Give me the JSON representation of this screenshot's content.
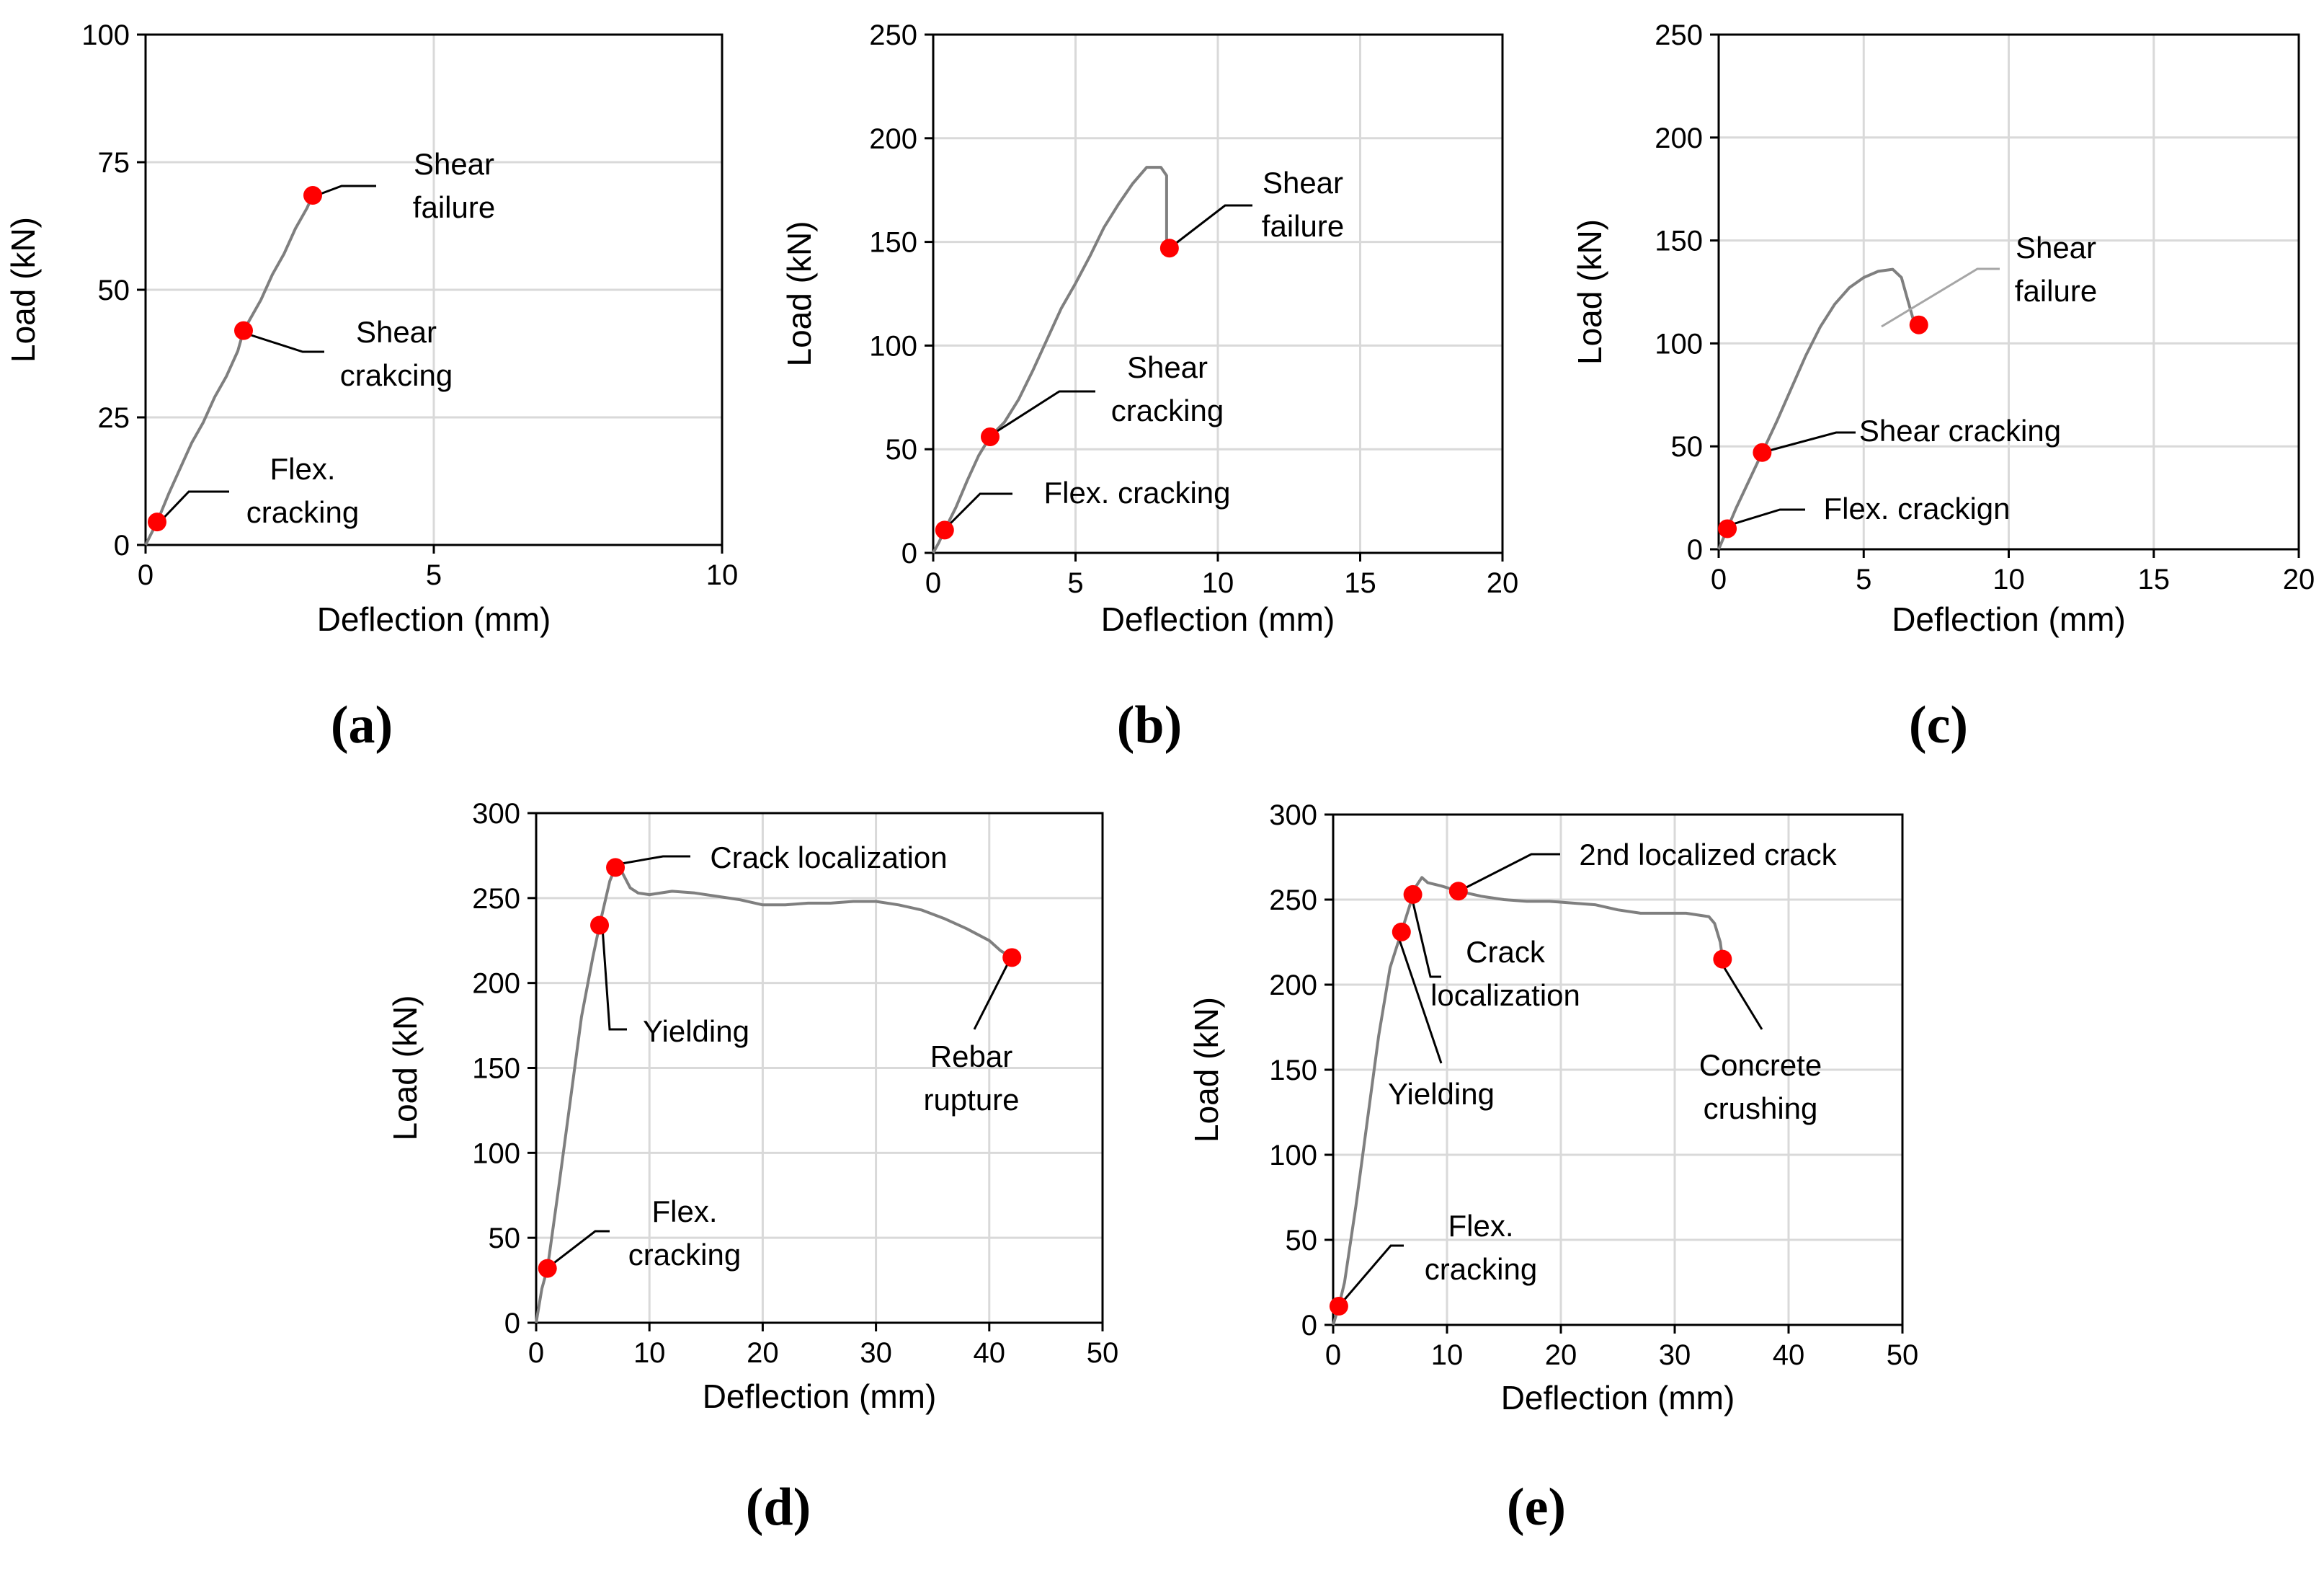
{
  "chart_data": [
    {
      "id": "a",
      "type": "line",
      "panel_label": "(a)",
      "xlabel": "Deflection (mm)",
      "ylabel": "Load (kN)",
      "xlim": [
        0,
        10
      ],
      "ylim": [
        0,
        100
      ],
      "xticks": [
        0,
        5,
        10
      ],
      "yticks": [
        0,
        25,
        50,
        75,
        100
      ],
      "curve": [
        [
          0,
          0
        ],
        [
          0.2,
          4.5
        ],
        [
          0.4,
          10
        ],
        [
          0.6,
          15
        ],
        [
          0.8,
          20
        ],
        [
          1.0,
          24
        ],
        [
          1.2,
          29
        ],
        [
          1.4,
          33
        ],
        [
          1.6,
          38
        ],
        [
          1.7,
          42
        ],
        [
          1.8,
          44
        ],
        [
          2.0,
          48
        ],
        [
          2.2,
          53
        ],
        [
          2.4,
          57
        ],
        [
          2.6,
          62
        ],
        [
          2.8,
          66
        ],
        [
          2.9,
          68.5
        ]
      ],
      "points": [
        {
          "x": 0.2,
          "y": 4.5,
          "label": [
            "Flex.",
            "cracking"
          ]
        },
        {
          "x": 1.7,
          "y": 42,
          "label": [
            "Shear",
            "crakcing"
          ]
        },
        {
          "x": 2.9,
          "y": 68.5,
          "label": [
            "Shear",
            "failure"
          ]
        }
      ]
    },
    {
      "id": "b",
      "type": "line",
      "panel_label": "(b)",
      "xlabel": "Deflection (mm)",
      "ylabel": "Load (kN)",
      "xlim": [
        0,
        20
      ],
      "ylim": [
        0,
        250
      ],
      "xticks": [
        0,
        5,
        10,
        15,
        20
      ],
      "yticks": [
        0,
        50,
        100,
        150,
        200,
        250
      ],
      "curve": [
        [
          0,
          0
        ],
        [
          0.2,
          5
        ],
        [
          0.4,
          11
        ],
        [
          0.8,
          22
        ],
        [
          1.2,
          35
        ],
        [
          1.6,
          47
        ],
        [
          2.0,
          56
        ],
        [
          2.5,
          63
        ],
        [
          3.0,
          74
        ],
        [
          3.5,
          88
        ],
        [
          4.0,
          103
        ],
        [
          4.5,
          118
        ],
        [
          5.0,
          130
        ],
        [
          5.5,
          143
        ],
        [
          6.0,
          157
        ],
        [
          6.5,
          168
        ],
        [
          7.0,
          178
        ],
        [
          7.5,
          186
        ],
        [
          8.0,
          186
        ],
        [
          8.2,
          182
        ],
        [
          8.2,
          150
        ],
        [
          8.3,
          147
        ]
      ],
      "points": [
        {
          "x": 0.4,
          "y": 11,
          "label": [
            "Flex. cracking"
          ]
        },
        {
          "x": 2.0,
          "y": 56,
          "label": [
            "Shear",
            "cracking"
          ]
        },
        {
          "x": 8.3,
          "y": 147,
          "label": [
            "Shear",
            "failure"
          ]
        }
      ]
    },
    {
      "id": "c",
      "type": "line",
      "panel_label": "(c)",
      "xlabel": "Deflection (mm)",
      "ylabel": "Load (kN)",
      "xlim": [
        0,
        20
      ],
      "ylim": [
        0,
        250
      ],
      "xticks": [
        0,
        5,
        10,
        15,
        20
      ],
      "yticks": [
        0,
        50,
        100,
        150,
        200,
        250
      ],
      "curve": [
        [
          0,
          0
        ],
        [
          0.3,
          10
        ],
        [
          0.6,
          20
        ],
        [
          1.0,
          32
        ],
        [
          1.5,
          47
        ],
        [
          2.0,
          62
        ],
        [
          2.5,
          78
        ],
        [
          3.0,
          94
        ],
        [
          3.5,
          108
        ],
        [
          4.0,
          119
        ],
        [
          4.5,
          127
        ],
        [
          5.0,
          132
        ],
        [
          5.5,
          135
        ],
        [
          6.0,
          136
        ],
        [
          6.3,
          132
        ],
        [
          6.5,
          122
        ],
        [
          6.7,
          112
        ],
        [
          6.9,
          109
        ]
      ],
      "points": [
        {
          "x": 0.3,
          "y": 10,
          "label": [
            "Flex. crackign"
          ]
        },
        {
          "x": 1.5,
          "y": 47,
          "label": [
            "Shear cracking"
          ]
        },
        {
          "x": 6.9,
          "y": 109,
          "label": [
            "Shear",
            "failure"
          ]
        }
      ]
    },
    {
      "id": "d",
      "type": "line",
      "panel_label": "(d)",
      "xlabel": "Deflection (mm)",
      "ylabel": "Load (kN)",
      "xlim": [
        0,
        50
      ],
      "ylim": [
        0,
        300
      ],
      "xticks": [
        0,
        10,
        20,
        30,
        40,
        50
      ],
      "yticks": [
        0,
        50,
        100,
        150,
        200,
        250,
        300
      ],
      "curve": [
        [
          0,
          0
        ],
        [
          0.5,
          20
        ],
        [
          1.0,
          32
        ],
        [
          2.0,
          80
        ],
        [
          3.0,
          130
        ],
        [
          4.0,
          180
        ],
        [
          5.0,
          215
        ],
        [
          5.6,
          234
        ],
        [
          6.5,
          260
        ],
        [
          7.0,
          268
        ],
        [
          7.6,
          265
        ],
        [
          8.3,
          256
        ],
        [
          9.0,
          253
        ],
        [
          10,
          252
        ],
        [
          12,
          254
        ],
        [
          14,
          253
        ],
        [
          16,
          251
        ],
        [
          18,
          249
        ],
        [
          20,
          246
        ],
        [
          22,
          246
        ],
        [
          24,
          247
        ],
        [
          26,
          247
        ],
        [
          28,
          248
        ],
        [
          30,
          248
        ],
        [
          32,
          246
        ],
        [
          34,
          243
        ],
        [
          36,
          238
        ],
        [
          38,
          232
        ],
        [
          40,
          225
        ],
        [
          41,
          219
        ],
        [
          42,
          215
        ]
      ],
      "points": [
        {
          "x": 1.0,
          "y": 32,
          "label": [
            "Flex.",
            "cracking"
          ]
        },
        {
          "x": 5.6,
          "y": 234,
          "label": [
            "Yielding"
          ]
        },
        {
          "x": 7.0,
          "y": 268,
          "label": [
            "Crack localization"
          ]
        },
        {
          "x": 42,
          "y": 215,
          "label": [
            "Rebar",
            "rupture"
          ]
        }
      ]
    },
    {
      "id": "e",
      "type": "line",
      "panel_label": "(e)",
      "xlabel": "Deflection (mm)",
      "ylabel": "Load (kN)",
      "xlim": [
        0,
        50
      ],
      "ylim": [
        0,
        300
      ],
      "xticks": [
        0,
        10,
        20,
        30,
        40,
        50
      ],
      "yticks": [
        0,
        50,
        100,
        150,
        200,
        250,
        300
      ],
      "curve": [
        [
          0,
          0
        ],
        [
          0.5,
          11
        ],
        [
          1.0,
          25
        ],
        [
          2.0,
          70
        ],
        [
          3.0,
          120
        ],
        [
          4.0,
          170
        ],
        [
          5.0,
          210
        ],
        [
          6.0,
          231
        ],
        [
          6.8,
          248
        ],
        [
          7.3,
          258
        ],
        [
          7.8,
          263
        ],
        [
          8.3,
          260
        ],
        [
          9.5,
          258
        ],
        [
          11,
          255
        ],
        [
          13,
          252
        ],
        [
          15,
          250
        ],
        [
          17,
          249
        ],
        [
          19,
          249
        ],
        [
          21,
          248
        ],
        [
          23,
          247
        ],
        [
          25,
          244
        ],
        [
          27,
          242
        ],
        [
          29,
          242
        ],
        [
          31,
          242
        ],
        [
          33,
          240
        ],
        [
          33.5,
          236
        ],
        [
          34,
          225
        ],
        [
          34.2,
          215
        ]
      ],
      "points": [
        {
          "x": 0.5,
          "y": 11,
          "label": [
            "Flex.",
            "cracking"
          ]
        },
        {
          "x": 6.0,
          "y": 231,
          "label": [
            "Yielding"
          ]
        },
        {
          "x": 7.0,
          "y": 253,
          "label": [
            "Crack",
            "localization"
          ]
        },
        {
          "x": 11.0,
          "y": 255,
          "label": [
            "2nd localized crack"
          ]
        },
        {
          "x": 34.2,
          "y": 215,
          "label": [
            "Concrete",
            "crushing"
          ]
        }
      ]
    }
  ]
}
